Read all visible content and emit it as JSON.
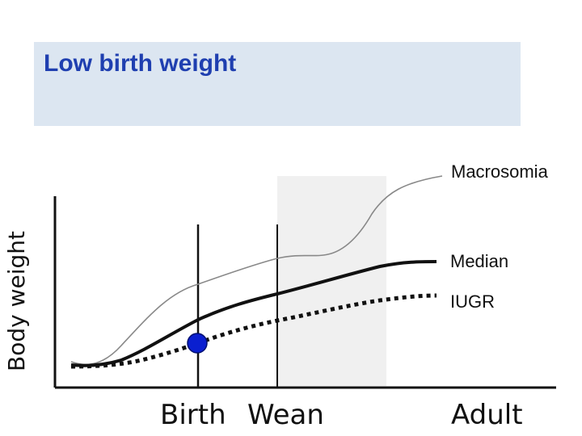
{
  "title": "Low birth weight",
  "chart_data": {
    "type": "line",
    "ylabel": "Body weight",
    "xticks": [
      "Birth",
      "Wean",
      "Adult"
    ],
    "curves": [
      "Macrosomia",
      "Median",
      "IUGR"
    ],
    "highlight_marker_color": "#0a1fd0",
    "title_color": "#1f3fb0",
    "panel_color": "#dce6f1"
  }
}
